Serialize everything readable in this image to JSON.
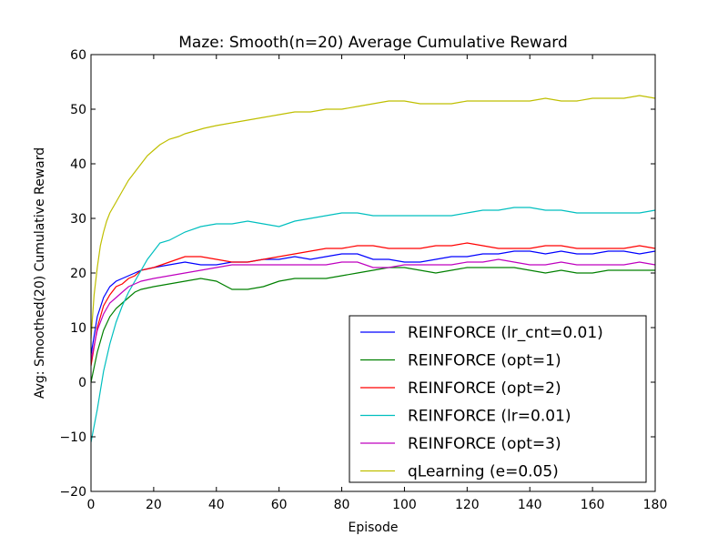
{
  "chart_data": {
    "type": "line",
    "title": "Maze: Smooth(n=20) Average Cumulative Reward",
    "xlabel": "Episode",
    "ylabel": "Avg: Smoothed(20) Cumulative Reward",
    "xlim": [
      0,
      180
    ],
    "ylim": [
      -20,
      60
    ],
    "xticks": [
      0,
      20,
      40,
      60,
      80,
      100,
      120,
      140,
      160,
      180
    ],
    "yticks": [
      -20,
      -10,
      0,
      10,
      20,
      30,
      40,
      50,
      60
    ],
    "grid": false,
    "legend_position": "lower-right",
    "series": [
      {
        "name": "REINFORCE (lr_cnt=0.01)",
        "color": "#0000ff",
        "x": [
          0,
          2,
          4,
          6,
          8,
          10,
          12,
          14,
          16,
          20,
          25,
          30,
          35,
          40,
          45,
          50,
          55,
          60,
          65,
          70,
          75,
          80,
          85,
          90,
          95,
          100,
          105,
          110,
          115,
          120,
          125,
          130,
          135,
          140,
          145,
          150,
          155,
          160,
          165,
          170,
          175,
          180
        ],
        "y": [
          5,
          12,
          15.5,
          17.5,
          18.5,
          19,
          19.5,
          20,
          20.5,
          21,
          21.5,
          22,
          21.5,
          21.5,
          22,
          22,
          22.5,
          22.5,
          23,
          22.5,
          23,
          23.5,
          23.5,
          22.5,
          22.5,
          22,
          22,
          22.5,
          23,
          23,
          23.5,
          23.5,
          24,
          24,
          23.5,
          24,
          23.5,
          23.5,
          24,
          24,
          23.5,
          24
        ]
      },
      {
        "name": "REINFORCE (opt=1)",
        "color": "#008000",
        "x": [
          0,
          2,
          4,
          6,
          8,
          10,
          12,
          14,
          16,
          20,
          25,
          30,
          35,
          40,
          45,
          50,
          55,
          60,
          65,
          70,
          75,
          80,
          85,
          90,
          95,
          100,
          105,
          110,
          115,
          120,
          125,
          130,
          135,
          140,
          145,
          150,
          155,
          160,
          165,
          170,
          175,
          180
        ],
        "y": [
          0,
          5.5,
          9.5,
          12,
          13.5,
          14.5,
          15.5,
          16.5,
          17,
          17.5,
          18,
          18.5,
          19,
          18.5,
          17,
          17,
          17.5,
          18.5,
          19,
          19,
          19,
          19.5,
          20,
          20.5,
          21,
          21,
          20.5,
          20,
          20.5,
          21,
          21,
          21,
          21,
          20.5,
          20,
          20.5,
          20,
          20,
          20.5,
          20.5,
          20.5,
          20.5
        ]
      },
      {
        "name": "REINFORCE (opt=2)",
        "color": "#ff0000",
        "x": [
          0,
          2,
          4,
          6,
          8,
          10,
          12,
          14,
          16,
          20,
          25,
          30,
          35,
          40,
          45,
          50,
          55,
          60,
          65,
          70,
          75,
          80,
          85,
          90,
          95,
          100,
          105,
          110,
          115,
          120,
          125,
          130,
          135,
          140,
          145,
          150,
          155,
          160,
          165,
          170,
          175,
          180
        ],
        "y": [
          3,
          10,
          14,
          16,
          17.5,
          18,
          19,
          19.5,
          20.5,
          21,
          22,
          23,
          23,
          22.5,
          22,
          22,
          22.5,
          23,
          23.5,
          24,
          24.5,
          24.5,
          25,
          25,
          24.5,
          24.5,
          24.5,
          25,
          25,
          25.5,
          25,
          24.5,
          24.5,
          24.5,
          25,
          25,
          24.5,
          24.5,
          24.5,
          24.5,
          25,
          24.5
        ]
      },
      {
        "name": "REINFORCE (lr=0.01)",
        "color": "#00bfbf",
        "x": [
          0,
          2,
          4,
          6,
          8,
          10,
          12,
          14,
          16,
          18,
          20,
          22,
          25,
          30,
          35,
          40,
          45,
          50,
          55,
          60,
          65,
          70,
          75,
          80,
          85,
          90,
          95,
          100,
          105,
          110,
          115,
          120,
          125,
          130,
          135,
          140,
          145,
          150,
          155,
          160,
          165,
          170,
          175,
          180
        ],
        "y": [
          -11,
          -5,
          2,
          7,
          11,
          14,
          16.5,
          18.5,
          20.5,
          22.5,
          24,
          25.5,
          26,
          27.5,
          28.5,
          29,
          29,
          29.5,
          29,
          28.5,
          29.5,
          30,
          30.5,
          31,
          31,
          30.5,
          30.5,
          30.5,
          30.5,
          30.5,
          30.5,
          31,
          31.5,
          31.5,
          32,
          32,
          31.5,
          31.5,
          31,
          31,
          31,
          31,
          31,
          31.5
        ]
      },
      {
        "name": "REINFORCE (opt=3)",
        "color": "#bf00bf",
        "x": [
          0,
          2,
          4,
          6,
          8,
          10,
          12,
          14,
          16,
          20,
          25,
          30,
          35,
          40,
          45,
          50,
          55,
          60,
          65,
          70,
          75,
          80,
          85,
          90,
          95,
          100,
          105,
          110,
          115,
          120,
          125,
          130,
          135,
          140,
          145,
          150,
          155,
          160,
          165,
          170,
          175,
          180
        ],
        "y": [
          4,
          9.5,
          12.5,
          14.5,
          15.5,
          16.5,
          17.5,
          18,
          18.5,
          19,
          19.5,
          20,
          20.5,
          21,
          21.5,
          21.5,
          21.5,
          21.5,
          21.5,
          21.5,
          21.5,
          22,
          22,
          21,
          21,
          21.5,
          21.5,
          21.5,
          21.5,
          22,
          22,
          22.5,
          22,
          21.5,
          21.5,
          22,
          21.5,
          21.5,
          21.5,
          21.5,
          22,
          21.5
        ]
      },
      {
        "name": "qLearning (e=0.05)",
        "color": "#bfbf00",
        "x": [
          0,
          1,
          2,
          3,
          4,
          5,
          6,
          8,
          10,
          12,
          14,
          16,
          18,
          20,
          22,
          25,
          28,
          30,
          33,
          36,
          40,
          45,
          50,
          55,
          60,
          65,
          70,
          75,
          80,
          85,
          90,
          95,
          100,
          105,
          110,
          115,
          120,
          125,
          130,
          135,
          140,
          145,
          150,
          155,
          160,
          165,
          170,
          175,
          180
        ],
        "y": [
          8,
          16,
          21,
          25,
          27.5,
          29.5,
          31,
          33,
          35,
          37,
          38.5,
          40,
          41.5,
          42.5,
          43.5,
          44.5,
          45,
          45.5,
          46,
          46.5,
          47,
          47.5,
          48,
          48.5,
          49,
          49.5,
          49.5,
          50,
          50,
          50.5,
          51,
          51.5,
          51.5,
          51,
          51,
          51,
          51.5,
          51.5,
          51.5,
          51.5,
          51.5,
          52,
          51.5,
          51.5,
          52,
          52,
          52,
          52.5,
          52
        ]
      }
    ]
  }
}
